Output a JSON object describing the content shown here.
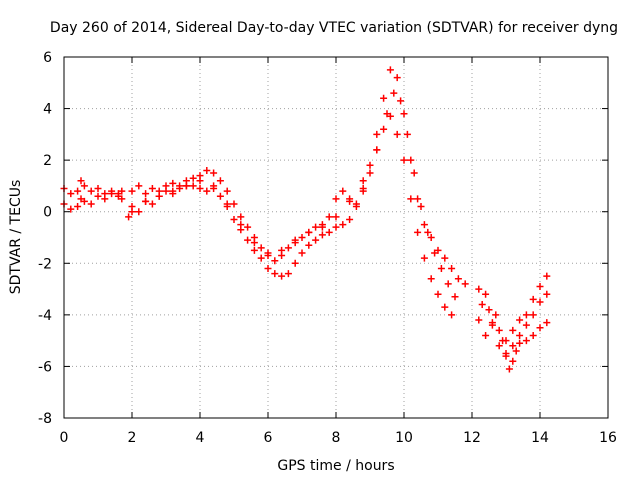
{
  "chart_data": {
    "type": "scatter",
    "title": "Day 260 of 2014, Sidereal Day-to-day VTEC variation (SDTVAR) for receiver dyng",
    "xlabel": "GPS time / hours",
    "ylabel": "SDTVAR / TECUs",
    "xlim": [
      0,
      16
    ],
    "ylim": [
      -8,
      6
    ],
    "x_ticks": [
      "0",
      "2",
      "4",
      "6",
      "8",
      "10",
      "12",
      "14",
      "16"
    ],
    "y_ticks": [
      "-8",
      "-6",
      "-4",
      "-2",
      "0",
      "2",
      "4",
      "6"
    ],
    "grid": true,
    "legend": "none",
    "marker": "+",
    "series_color": "#ff0000",
    "series": [
      {
        "x": [
          0.0,
          0.2,
          0.4,
          0.5,
          0.6,
          0.8,
          1.0,
          1.2,
          1.4,
          1.6,
          1.7
        ],
        "y": [
          0.3,
          0.1,
          0.2,
          0.5,
          0.4,
          0.3,
          0.6,
          0.5,
          0.7,
          0.6,
          0.5
        ]
      },
      {
        "x": [
          0.0,
          0.2,
          0.4,
          0.5,
          0.6,
          0.8,
          1.0,
          1.2,
          1.4,
          1.6,
          1.7
        ],
        "y": [
          0.9,
          0.7,
          0.8,
          1.2,
          1.0,
          0.8,
          0.9,
          0.7,
          0.8,
          0.7,
          0.8
        ]
      },
      {
        "x": [
          1.9,
          2.0,
          2.2,
          2.4,
          2.6,
          2.8,
          3.0,
          3.2,
          3.4,
          3.6,
          3.8,
          4.0,
          4.2,
          4.4,
          4.6,
          4.8,
          5.0,
          5.2,
          5.4,
          5.6,
          5.8,
          6.0,
          6.2,
          6.4,
          6.6,
          6.8,
          7.0,
          7.2,
          7.4,
          7.6,
          7.8,
          8.0,
          8.2,
          8.4,
          8.6,
          8.8,
          9.0,
          9.2,
          9.4,
          9.6,
          9.8,
          10.0,
          10.2,
          10.4,
          10.6,
          10.8,
          11.0,
          11.2,
          11.4
        ],
        "y": [
          -0.2,
          0.2,
          0.0,
          0.4,
          0.3,
          0.6,
          0.8,
          0.7,
          0.9,
          1.0,
          1.0,
          0.9,
          0.8,
          0.9,
          0.6,
          0.2,
          -0.3,
          -0.7,
          -1.1,
          -1.5,
          -1.8,
          -2.2,
          -2.4,
          -2.5,
          -2.4,
          -2.0,
          -1.6,
          -1.3,
          -1.1,
          -0.9,
          -0.8,
          -0.6,
          -0.5,
          -0.3,
          0.2,
          0.9,
          1.5,
          2.4,
          3.2,
          3.7,
          3.0,
          2.0,
          0.5,
          -0.8,
          -1.8,
          -2.6,
          -3.2,
          -3.7,
          -4.0
        ]
      },
      {
        "x": [
          2.0,
          2.2,
          2.4,
          2.6,
          2.8,
          3.0,
          3.2,
          3.4,
          3.6,
          3.8,
          4.0,
          4.2,
          4.4,
          4.6,
          4.8,
          5.0,
          5.2,
          5.4,
          5.6,
          5.8,
          6.0,
          6.2,
          6.4,
          6.6,
          6.8,
          7.0,
          7.2,
          7.4,
          7.6,
          7.8,
          8.0,
          8.2,
          8.4,
          8.6,
          8.8,
          9.0,
          9.2,
          9.4,
          9.6,
          9.8,
          10.0,
          10.2,
          10.4,
          10.6,
          10.8,
          11.0,
          11.2,
          11.4,
          11.6,
          11.8
        ],
        "y": [
          0.8,
          1.0,
          0.7,
          0.9,
          0.8,
          1.0,
          1.1,
          1.0,
          1.2,
          1.3,
          1.4,
          1.6,
          1.5,
          1.2,
          0.8,
          0.3,
          -0.2,
          -0.6,
          -1.0,
          -1.4,
          -1.7,
          -1.9,
          -1.7,
          -1.4,
          -1.2,
          -1.0,
          -0.8,
          -0.6,
          -0.5,
          -0.2,
          0.5,
          0.8,
          0.5,
          0.3,
          0.8,
          1.8,
          3.0,
          4.4,
          5.5,
          5.2,
          3.8,
          2.0,
          0.5,
          -0.5,
          -1.0,
          -1.5,
          -1.8,
          -2.2,
          -2.6,
          -2.8
        ]
      },
      {
        "x": [
          2.0,
          2.4,
          2.8,
          3.2,
          3.6,
          4.0,
          4.4,
          4.8,
          5.2,
          5.6,
          6.0,
          6.4,
          6.8,
          7.2,
          7.6,
          8.0,
          8.4,
          8.8,
          9.2,
          9.5,
          9.7,
          9.9,
          10.1,
          10.3,
          10.5,
          10.7,
          10.9,
          11.1,
          11.3,
          11.5
        ],
        "y": [
          0.0,
          0.4,
          0.6,
          0.8,
          1.0,
          1.2,
          1.0,
          0.3,
          -0.5,
          -1.2,
          -1.6,
          -1.5,
          -1.1,
          -0.8,
          -0.6,
          -0.2,
          0.4,
          1.2,
          2.4,
          3.8,
          4.6,
          4.3,
          3.0,
          1.5,
          0.2,
          -0.8,
          -1.6,
          -2.2,
          -2.8,
          -3.3
        ]
      },
      {
        "x": [
          12.2,
          12.3,
          12.4,
          12.5,
          12.6,
          12.7,
          12.8,
          12.9,
          13.0,
          13.1,
          13.2,
          13.3,
          13.4,
          13.6,
          13.8,
          14.0,
          14.2
        ],
        "y": [
          -3.0,
          -3.6,
          -3.2,
          -3.8,
          -4.3,
          -4.0,
          -4.6,
          -5.0,
          -5.6,
          -6.1,
          -5.8,
          -5.4,
          -4.8,
          -4.0,
          -3.4,
          -2.9,
          -2.5
        ]
      },
      {
        "x": [
          12.2,
          12.4,
          12.6,
          12.8,
          13.0,
          13.2,
          13.4,
          13.6,
          13.8,
          14.0,
          14.2
        ],
        "y": [
          -4.2,
          -4.8,
          -4.4,
          -5.2,
          -5.0,
          -4.6,
          -4.2,
          -4.4,
          -4.0,
          -3.5,
          -3.2
        ]
      },
      {
        "x": [
          13.0,
          13.2,
          13.4,
          13.6,
          13.8,
          14.0,
          14.2
        ],
        "y": [
          -5.5,
          -5.2,
          -5.1,
          -5.0,
          -4.8,
          -4.5,
          -4.3
        ]
      }
    ]
  }
}
